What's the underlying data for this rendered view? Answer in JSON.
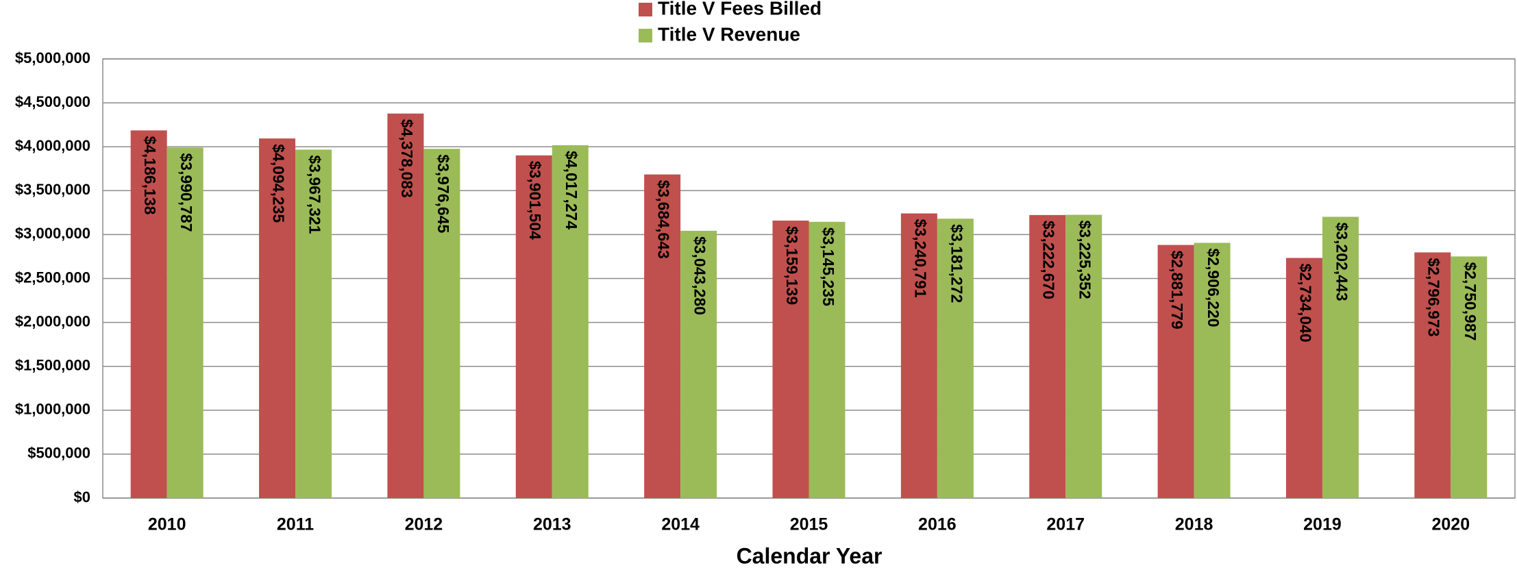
{
  "chart_data": {
    "type": "bar",
    "x_label": "Calendar Year",
    "categories": [
      "2010",
      "2011",
      "2012",
      "2013",
      "2014",
      "2015",
      "2016",
      "2017",
      "2018",
      "2019",
      "2020"
    ],
    "series": [
      {
        "name": "Title V Fees Billed",
        "color": "#c0504d",
        "values": [
          4186138,
          4094235,
          4378083,
          3901504,
          3684643,
          3159139,
          3240791,
          3222670,
          2881779,
          2734040,
          2796973
        ],
        "value_labels": [
          "$4,186,138",
          "$4,094,235",
          "$4,378,083",
          "$3,901,504",
          "$3,684,643",
          "$3,159,139",
          "$3,240,791",
          "$3,222,670",
          "$2,881,779",
          "$2,734,040",
          "$2,796,973"
        ]
      },
      {
        "name": "Title V Revenue",
        "color": "#9bbb59",
        "values": [
          3990787,
          3967321,
          3976645,
          4017274,
          3043280,
          3145235,
          3181272,
          3225352,
          2906220,
          3202443,
          2750987
        ],
        "value_labels": [
          "$3,990,787",
          "$3,967,321",
          "$3,976,645",
          "$4,017,274",
          "$3,043,280",
          "$3,145,235",
          "$3,181,272",
          "$3,225,352",
          "$2,906,220",
          "$3,202,443",
          "$2,750,987"
        ]
      }
    ],
    "ylim": [
      0,
      5000000
    ],
    "yticks": [
      {
        "value": 0,
        "label": "$0"
      },
      {
        "value": 500000,
        "label": "$500,000"
      },
      {
        "value": 1000000,
        "label": "$1,000,000"
      },
      {
        "value": 1500000,
        "label": "$1,500,000"
      },
      {
        "value": 2000000,
        "label": "$2,000,000"
      },
      {
        "value": 2500000,
        "label": "$2,500,000"
      },
      {
        "value": 3000000,
        "label": "$3,000,000"
      },
      {
        "value": 3500000,
        "label": "$3,500,000"
      },
      {
        "value": 4000000,
        "label": "$4,000,000"
      },
      {
        "value": 4500000,
        "label": "$4,500,000"
      },
      {
        "value": 5000000,
        "label": "$5,000,000"
      }
    ],
    "grid": true,
    "legend": "top"
  }
}
